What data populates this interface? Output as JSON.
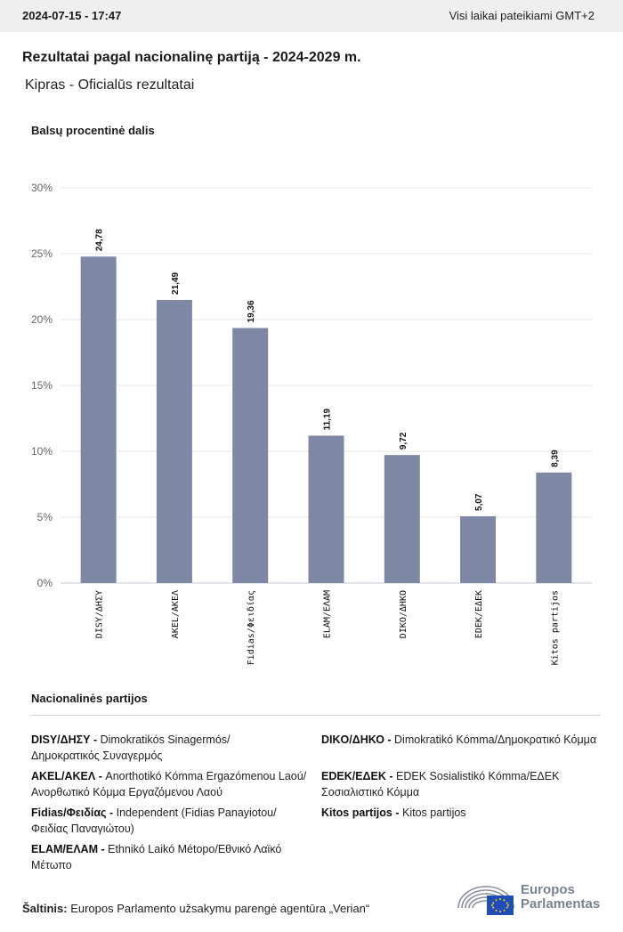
{
  "header": {
    "datetime": "2024-07-15 - 17:47",
    "timezone_note": "Visi laikai pateikiami GMT+2"
  },
  "title": "Rezultatai pagal nacionalinę partiją - 2024-2029 m.",
  "subtitle": "Kipras - Oficialūs rezultatai",
  "chart_data": {
    "type": "bar",
    "ylabel": "Balsų procentinė dalis",
    "categories": [
      "DISY/ΔΗΣΥ",
      "AKEL/ΑΚΕΛ",
      "Fidias/Φειδίας",
      "ELAM/ΕΛΑΜ",
      "DIKO/ΔΗΚΟ",
      "EDEK/ΕΔΕΚ",
      "Kitos partijos"
    ],
    "values": [
      24.78,
      21.49,
      19.36,
      11.19,
      9.72,
      5.07,
      8.39
    ],
    "value_labels": [
      "24,78",
      "21,49",
      "19,36",
      "11,19",
      "9,72",
      "5,07",
      "8,39"
    ],
    "yticks": [
      "0%",
      "5%",
      "10%",
      "15%",
      "20%",
      "25%",
      "30%"
    ],
    "ylim": [
      0,
      30
    ],
    "grid": true,
    "bar_color": "#7e88a5"
  },
  "legend": {
    "title": "Nacionalinės partijos",
    "items": [
      {
        "abbr": "DISY/ΔΗΣΥ -",
        "name": "Dimokratikós Sinagermós/ Δημοκρατικός Συναγερμός"
      },
      {
        "abbr": "AKEL/ΑΚΕΛ -",
        "name": "Anorthotikó Kómma Ergazómenou Laoú/Ανορθωτικό Κόμμα Εργαζόμενου Λαού"
      },
      {
        "abbr": "Fidias/Φειδίας -",
        "name": "Independent (Fidias Panayiotou/ Φειδίας Παναγιώτου)"
      },
      {
        "abbr": "ELAM/ΕΛΑΜ -",
        "name": "Ethnikó Laikó Métopo/Εθνικό Λαϊκό Μέτωπο"
      },
      {
        "abbr": "DIKO/ΔΗΚΟ -",
        "name": "Dimokratikó Kómma/Δημοκρατικό Κόμμα"
      },
      {
        "abbr": "EDEK/ΕΔΕΚ -",
        "name": "EDEK Sosialistikó Kómma/ΕΔΕΚ Σοσιαλιστικό Κόμμα"
      },
      {
        "abbr": "Kitos partijos -",
        "name": "Kitos partijos"
      }
    ]
  },
  "source": {
    "label": "Šaltinis:",
    "text": "Europos Parlamento užsakymu parengė agentūra „Verian“"
  },
  "logo": {
    "line1": "Europos",
    "line2": "Parlamentas"
  }
}
